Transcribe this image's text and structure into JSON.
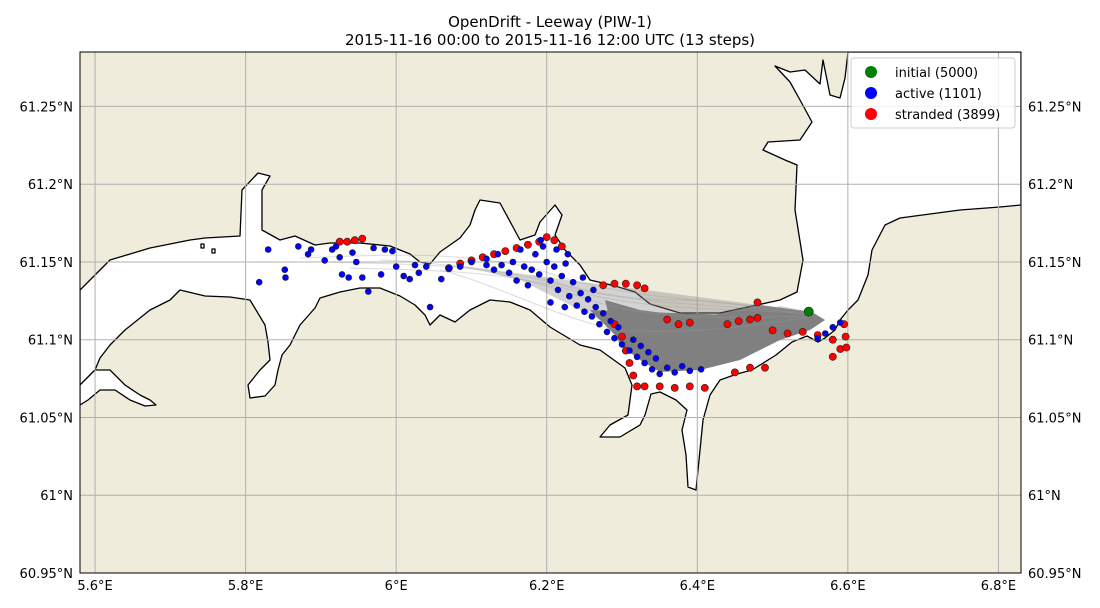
{
  "title": {
    "line1": "OpenDrift - Leeway (PIW-1)",
    "line2": "2015-11-16 00:00 to 2015-11-16 12:00 UTC (13 steps)"
  },
  "axes": {
    "lon_ticks": [
      {
        "value": 5.6,
        "label": "5.6°E"
      },
      {
        "value": 5.8,
        "label": "5.8°E"
      },
      {
        "value": 6.0,
        "label": "6°E"
      },
      {
        "value": 6.2,
        "label": "6.2°E"
      },
      {
        "value": 6.4,
        "label": "6.4°E"
      },
      {
        "value": 6.6,
        "label": "6.6°E"
      },
      {
        "value": 6.8,
        "label": "6.8°E"
      }
    ],
    "lat_ticks": [
      {
        "value": 60.95,
        "label": "60.95°N"
      },
      {
        "value": 61.0,
        "label": "61°N"
      },
      {
        "value": 61.05,
        "label": "61.05°N"
      },
      {
        "value": 61.1,
        "label": "61.1°N"
      },
      {
        "value": 61.15,
        "label": "61.15°N"
      },
      {
        "value": 61.2,
        "label": "61.2°N"
      },
      {
        "value": 61.25,
        "label": "61.25°N"
      }
    ],
    "xlim": [
      5.58,
      6.83
    ],
    "ylim": [
      60.95,
      61.285
    ],
    "grid": true
  },
  "legend": {
    "position": "top-right",
    "items": [
      {
        "label": "initial (5000)",
        "color": "#008000"
      },
      {
        "label": "active (1101)",
        "color": "#0000ff"
      },
      {
        "label": "stranded (3899)",
        "color": "#ff0000"
      }
    ]
  },
  "colors": {
    "land": "#efecdc",
    "water": "#ffffff",
    "coast": "#000000",
    "trajectory": "#808080",
    "grid": "#b0b0b0"
  },
  "chart_data": {
    "type": "scatter",
    "title": "OpenDrift - Leeway (PIW-1)",
    "subtitle": "2015-11-16 00:00 to 2015-11-16 12:00 UTC (13 steps)",
    "xlabel": "",
    "ylabel": "",
    "xlim": [
      5.58,
      6.83
    ],
    "ylim": [
      60.95,
      61.285
    ],
    "series": [
      {
        "name": "initial (5000)",
        "color": "#008000",
        "points": [
          [
            6.548,
            61.118
          ]
        ]
      },
      {
        "name": "active (1101)",
        "color": "#0000ff",
        "points": [
          [
            5.818,
            61.137
          ],
          [
            5.83,
            61.158
          ],
          [
            5.852,
            61.145
          ],
          [
            5.853,
            61.14
          ],
          [
            5.87,
            61.16
          ],
          [
            5.883,
            61.155
          ],
          [
            5.887,
            61.158
          ],
          [
            5.905,
            61.151
          ],
          [
            5.915,
            61.158
          ],
          [
            5.92,
            61.16
          ],
          [
            5.925,
            61.153
          ],
          [
            5.928,
            61.142
          ],
          [
            5.937,
            61.14
          ],
          [
            5.942,
            61.156
          ],
          [
            5.947,
            61.15
          ],
          [
            5.955,
            61.14
          ],
          [
            5.963,
            61.131
          ],
          [
            5.97,
            61.159
          ],
          [
            5.98,
            61.142
          ],
          [
            5.985,
            61.158
          ],
          [
            5.995,
            61.157
          ],
          [
            6.0,
            61.147
          ],
          [
            6.01,
            61.141
          ],
          [
            6.018,
            61.139
          ],
          [
            6.025,
            61.148
          ],
          [
            6.03,
            61.143
          ],
          [
            6.04,
            61.147
          ],
          [
            6.045,
            61.121
          ],
          [
            6.06,
            61.139
          ],
          [
            6.07,
            61.146
          ],
          [
            6.085,
            61.147
          ],
          [
            6.1,
            61.15
          ],
          [
            6.12,
            61.148
          ],
          [
            6.13,
            61.145
          ],
          [
            6.14,
            61.148
          ],
          [
            6.15,
            61.143
          ],
          [
            6.155,
            61.15
          ],
          [
            6.16,
            61.138
          ],
          [
            6.17,
            61.147
          ],
          [
            6.175,
            61.135
          ],
          [
            6.18,
            61.145
          ],
          [
            6.185,
            61.155
          ],
          [
            6.19,
            61.142
          ],
          [
            6.195,
            61.16
          ],
          [
            6.2,
            61.15
          ],
          [
            6.205,
            61.138
          ],
          [
            6.21,
            61.147
          ],
          [
            6.215,
            61.132
          ],
          [
            6.22,
            61.141
          ],
          [
            6.225,
            61.149
          ],
          [
            6.23,
            61.128
          ],
          [
            6.235,
            61.137
          ],
          [
            6.24,
            61.122
          ],
          [
            6.245,
            61.13
          ],
          [
            6.25,
            61.118
          ],
          [
            6.255,
            61.126
          ],
          [
            6.26,
            61.115
          ],
          [
            6.265,
            61.121
          ],
          [
            6.27,
            61.11
          ],
          [
            6.275,
            61.117
          ],
          [
            6.28,
            61.105
          ],
          [
            6.285,
            61.112
          ],
          [
            6.29,
            61.101
          ],
          [
            6.295,
            61.108
          ],
          [
            6.3,
            61.097
          ],
          [
            6.31,
            61.093
          ],
          [
            6.315,
            61.1
          ],
          [
            6.32,
            61.089
          ],
          [
            6.325,
            61.096
          ],
          [
            6.33,
            61.085
          ],
          [
            6.335,
            61.092
          ],
          [
            6.34,
            61.081
          ],
          [
            6.345,
            61.088
          ],
          [
            6.35,
            61.078
          ],
          [
            6.36,
            61.082
          ],
          [
            6.37,
            61.079
          ],
          [
            6.38,
            61.083
          ],
          [
            6.39,
            61.08
          ],
          [
            6.405,
            61.081
          ],
          [
            6.12,
            61.152
          ],
          [
            6.165,
            61.158
          ],
          [
            6.192,
            61.164
          ],
          [
            6.213,
            61.158
          ],
          [
            6.228,
            61.155
          ],
          [
            6.135,
            61.155
          ],
          [
            6.248,
            61.14
          ],
          [
            6.262,
            61.132
          ],
          [
            6.205,
            61.124
          ],
          [
            6.224,
            61.121
          ],
          [
            6.56,
            61.101
          ],
          [
            6.57,
            61.104
          ],
          [
            6.58,
            61.108
          ],
          [
            6.59,
            61.111
          ]
        ]
      },
      {
        "name": "stranded (3899)",
        "color": "#ff0000",
        "points": [
          [
            5.925,
            61.163
          ],
          [
            5.935,
            61.163
          ],
          [
            5.945,
            61.164
          ],
          [
            5.955,
            61.165
          ],
          [
            6.07,
            61.146
          ],
          [
            6.085,
            61.149
          ],
          [
            6.1,
            61.151
          ],
          [
            6.115,
            61.153
          ],
          [
            6.13,
            61.155
          ],
          [
            6.145,
            61.157
          ],
          [
            6.16,
            61.159
          ],
          [
            6.175,
            61.161
          ],
          [
            6.19,
            61.163
          ],
          [
            6.2,
            61.166
          ],
          [
            6.21,
            61.164
          ],
          [
            6.22,
            61.16
          ],
          [
            6.275,
            61.135
          ],
          [
            6.29,
            61.136
          ],
          [
            6.305,
            61.136
          ],
          [
            6.32,
            61.135
          ],
          [
            6.33,
            61.133
          ],
          [
            6.36,
            61.113
          ],
          [
            6.375,
            61.11
          ],
          [
            6.39,
            61.111
          ],
          [
            6.44,
            61.11
          ],
          [
            6.455,
            61.112
          ],
          [
            6.47,
            61.113
          ],
          [
            6.48,
            61.114
          ],
          [
            6.48,
            61.124
          ],
          [
            6.5,
            61.106
          ],
          [
            6.52,
            61.104
          ],
          [
            6.54,
            61.105
          ],
          [
            6.56,
            61.103
          ],
          [
            6.58,
            61.1
          ],
          [
            6.59,
            61.094
          ],
          [
            6.58,
            61.089
          ],
          [
            6.595,
            61.11
          ],
          [
            6.597,
            61.102
          ],
          [
            6.598,
            61.095
          ],
          [
            6.29,
            61.11
          ],
          [
            6.3,
            61.102
          ],
          [
            6.305,
            61.093
          ],
          [
            6.31,
            61.085
          ],
          [
            6.315,
            61.077
          ],
          [
            6.32,
            61.07
          ],
          [
            6.33,
            61.07
          ],
          [
            6.35,
            61.07
          ],
          [
            6.37,
            61.069
          ],
          [
            6.39,
            61.07
          ],
          [
            6.41,
            61.069
          ],
          [
            6.45,
            61.079
          ],
          [
            6.47,
            61.082
          ],
          [
            6.49,
            61.082
          ]
        ]
      }
    ]
  }
}
